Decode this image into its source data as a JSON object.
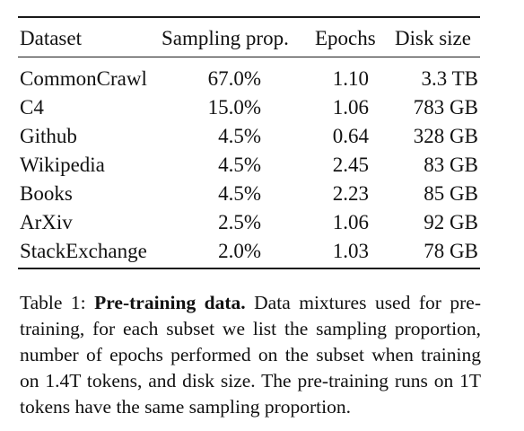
{
  "table": {
    "columns": [
      "Dataset",
      "Sampling prop.",
      "Epochs",
      "Disk size"
    ],
    "rows": [
      {
        "dataset": "CommonCrawl",
        "prop": "67.0%",
        "epochs": "1.10",
        "disk": "3.3 TB"
      },
      {
        "dataset": "C4",
        "prop": "15.0%",
        "epochs": "1.06",
        "disk": "783 GB"
      },
      {
        "dataset": "Github",
        "prop": "4.5%",
        "epochs": "0.64",
        "disk": "328 GB"
      },
      {
        "dataset": "Wikipedia",
        "prop": "4.5%",
        "epochs": "2.45",
        "disk": "83 GB"
      },
      {
        "dataset": "Books",
        "prop": "4.5%",
        "epochs": "2.23",
        "disk": "85 GB"
      },
      {
        "dataset": "ArXiv",
        "prop": "2.5%",
        "epochs": "1.06",
        "disk": "92 GB"
      },
      {
        "dataset": "StackExchange",
        "prop": "2.0%",
        "epochs": "1.03",
        "disk": "78 GB"
      }
    ]
  },
  "caption": {
    "label": "Table 1: ",
    "title": "Pre-training data.",
    "text": " Data mixtures used for pre-training, for each subset we list the sampling proportion, number of epochs performed on the subset when training on 1.4T tokens, and disk size. The pre-training runs on 1T tokens have the same sampling proportion."
  }
}
